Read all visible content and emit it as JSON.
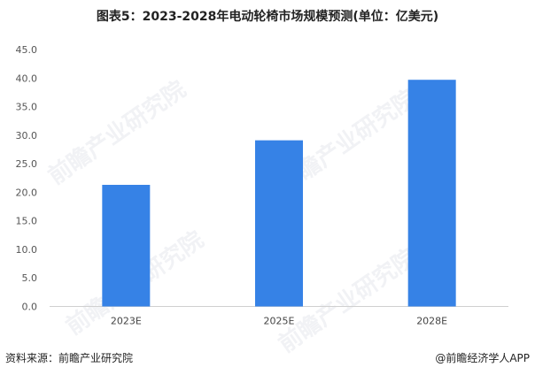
{
  "title": "图表5：2023-2028年电动轮椅市场规模预测(单位：亿美元)",
  "source": "资料来源：前瞻产业研究院",
  "credit": "@前瞻经济学人APP",
  "watermark": "前瞻产业研究院",
  "chart_data": {
    "type": "bar",
    "categories": [
      "2023E",
      "2025E",
      "2028E"
    ],
    "values": [
      21.3,
      29.1,
      39.7
    ],
    "ylim": [
      0,
      45
    ],
    "yticks": [
      "0.0",
      "5.0",
      "10.0",
      "15.0",
      "20.0",
      "25.0",
      "30.0",
      "35.0",
      "40.0",
      "45.0"
    ],
    "grid": false,
    "bar_color": "#3682E6"
  }
}
